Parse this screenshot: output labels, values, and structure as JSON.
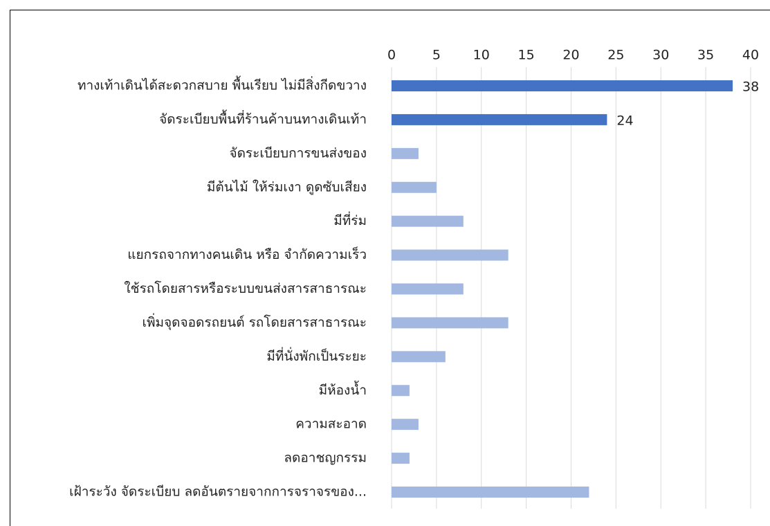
{
  "chart_data": {
    "type": "barh",
    "categories": [
      "ทางเท้าเดินได้สะดวกสบาย พื้นเรียบ ไม่มีสิ่งกีดขวาง",
      "จัดระเบียบพื้นที่ร้านค้าบนทางเดินเท้า",
      "จัดระเบียบการขนส่งของ",
      "มีต้นไม้ ให้ร่มเงา ดูดซับเสียง",
      "มีที่ร่ม",
      "แยกรถจากทางคนเดิน หรือ จำกัดความเร็ว",
      "ใช้รถโดยสารหรือระบบขนส่งสารสาธารณะ",
      "เพิ่มจุดจอดรถยนต์ รถโดยสารสาธารณะ",
      "มีที่นั่งพักเป็นระยะ",
      "มีห้องน้ำ",
      "ความสะอาด",
      "ลดอาชญกรรม",
      "เฝ้าระวัง จัดระเบียบ ลดอันตรายจากการจราจรของ..."
    ],
    "values": [
      38,
      24,
      3,
      5,
      8,
      13,
      8,
      13,
      6,
      2,
      3,
      2,
      22
    ],
    "value_labels": [
      "38",
      "24",
      null,
      null,
      null,
      null,
      null,
      null,
      null,
      null,
      null,
      null,
      null
    ],
    "colors": [
      "#4472c4",
      "#4472c4",
      "#a2b8e1",
      "#a2b8e1",
      "#a2b8e1",
      "#a2b8e1",
      "#a2b8e1",
      "#a2b8e1",
      "#a2b8e1",
      "#a2b8e1",
      "#a2b8e1",
      "#a2b8e1",
      "#a2b8e1"
    ],
    "xlim": [
      0,
      40
    ],
    "xticks": [
      0,
      5,
      10,
      15,
      20,
      25,
      30,
      35,
      40
    ],
    "grid": true
  }
}
